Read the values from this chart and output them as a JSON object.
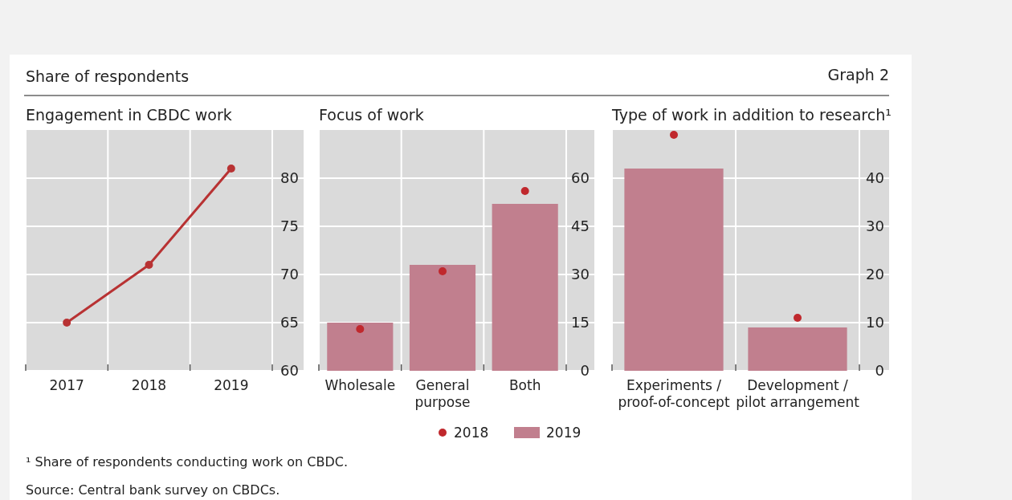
{
  "chart_data": [
    {
      "type": "line",
      "title": "Engagement in CBDC work",
      "annotations": [
        "Share of respondents",
        "Graph 2"
      ],
      "categories": [
        "2017",
        "2018",
        "2019"
      ],
      "series": [
        {
          "color": "#b83233",
          "values": [
            65,
            71,
            81
          ]
        }
      ],
      "ylim": [
        60,
        85
      ],
      "yticks": [
        60,
        65,
        70,
        75,
        80
      ],
      "grid": true,
      "marker": "circle",
      "line_style": "solid"
    },
    {
      "type": "bar",
      "title": "Focus of work",
      "categories": [
        "Wholesale",
        "General purpose",
        "Both"
      ],
      "series": [
        {
          "name": "2018",
          "type": "scatter",
          "color": "#c0282d",
          "values": [
            13,
            31,
            56
          ]
        },
        {
          "name": "2019",
          "type": "bar",
          "color": "#c17f8e",
          "values": [
            15,
            33,
            52
          ]
        }
      ],
      "ylim": [
        0,
        75
      ],
      "yticks": [
        0,
        15,
        30,
        45,
        60
      ],
      "grid": true,
      "legend": "bottom"
    },
    {
      "type": "bar",
      "title": "Type of work in addition to research¹",
      "annotations": [
        "¹ Share of respondents conducting work on CBDC.",
        "Source: Central bank survey on CBDCs."
      ],
      "categories": [
        "Experiments / proof-of-concept",
        "Development / pilot arrangement"
      ],
      "series": [
        {
          "type": "scatter",
          "color": "#c0282d",
          "values": [
            49,
            11
          ]
        },
        {
          "type": "bar",
          "color": "#c17f8e",
          "values": [
            42,
            9
          ]
        }
      ],
      "ylim": [
        0,
        50
      ],
      "yticks": [
        0,
        10,
        20,
        30,
        40
      ],
      "grid": true
    }
  ]
}
